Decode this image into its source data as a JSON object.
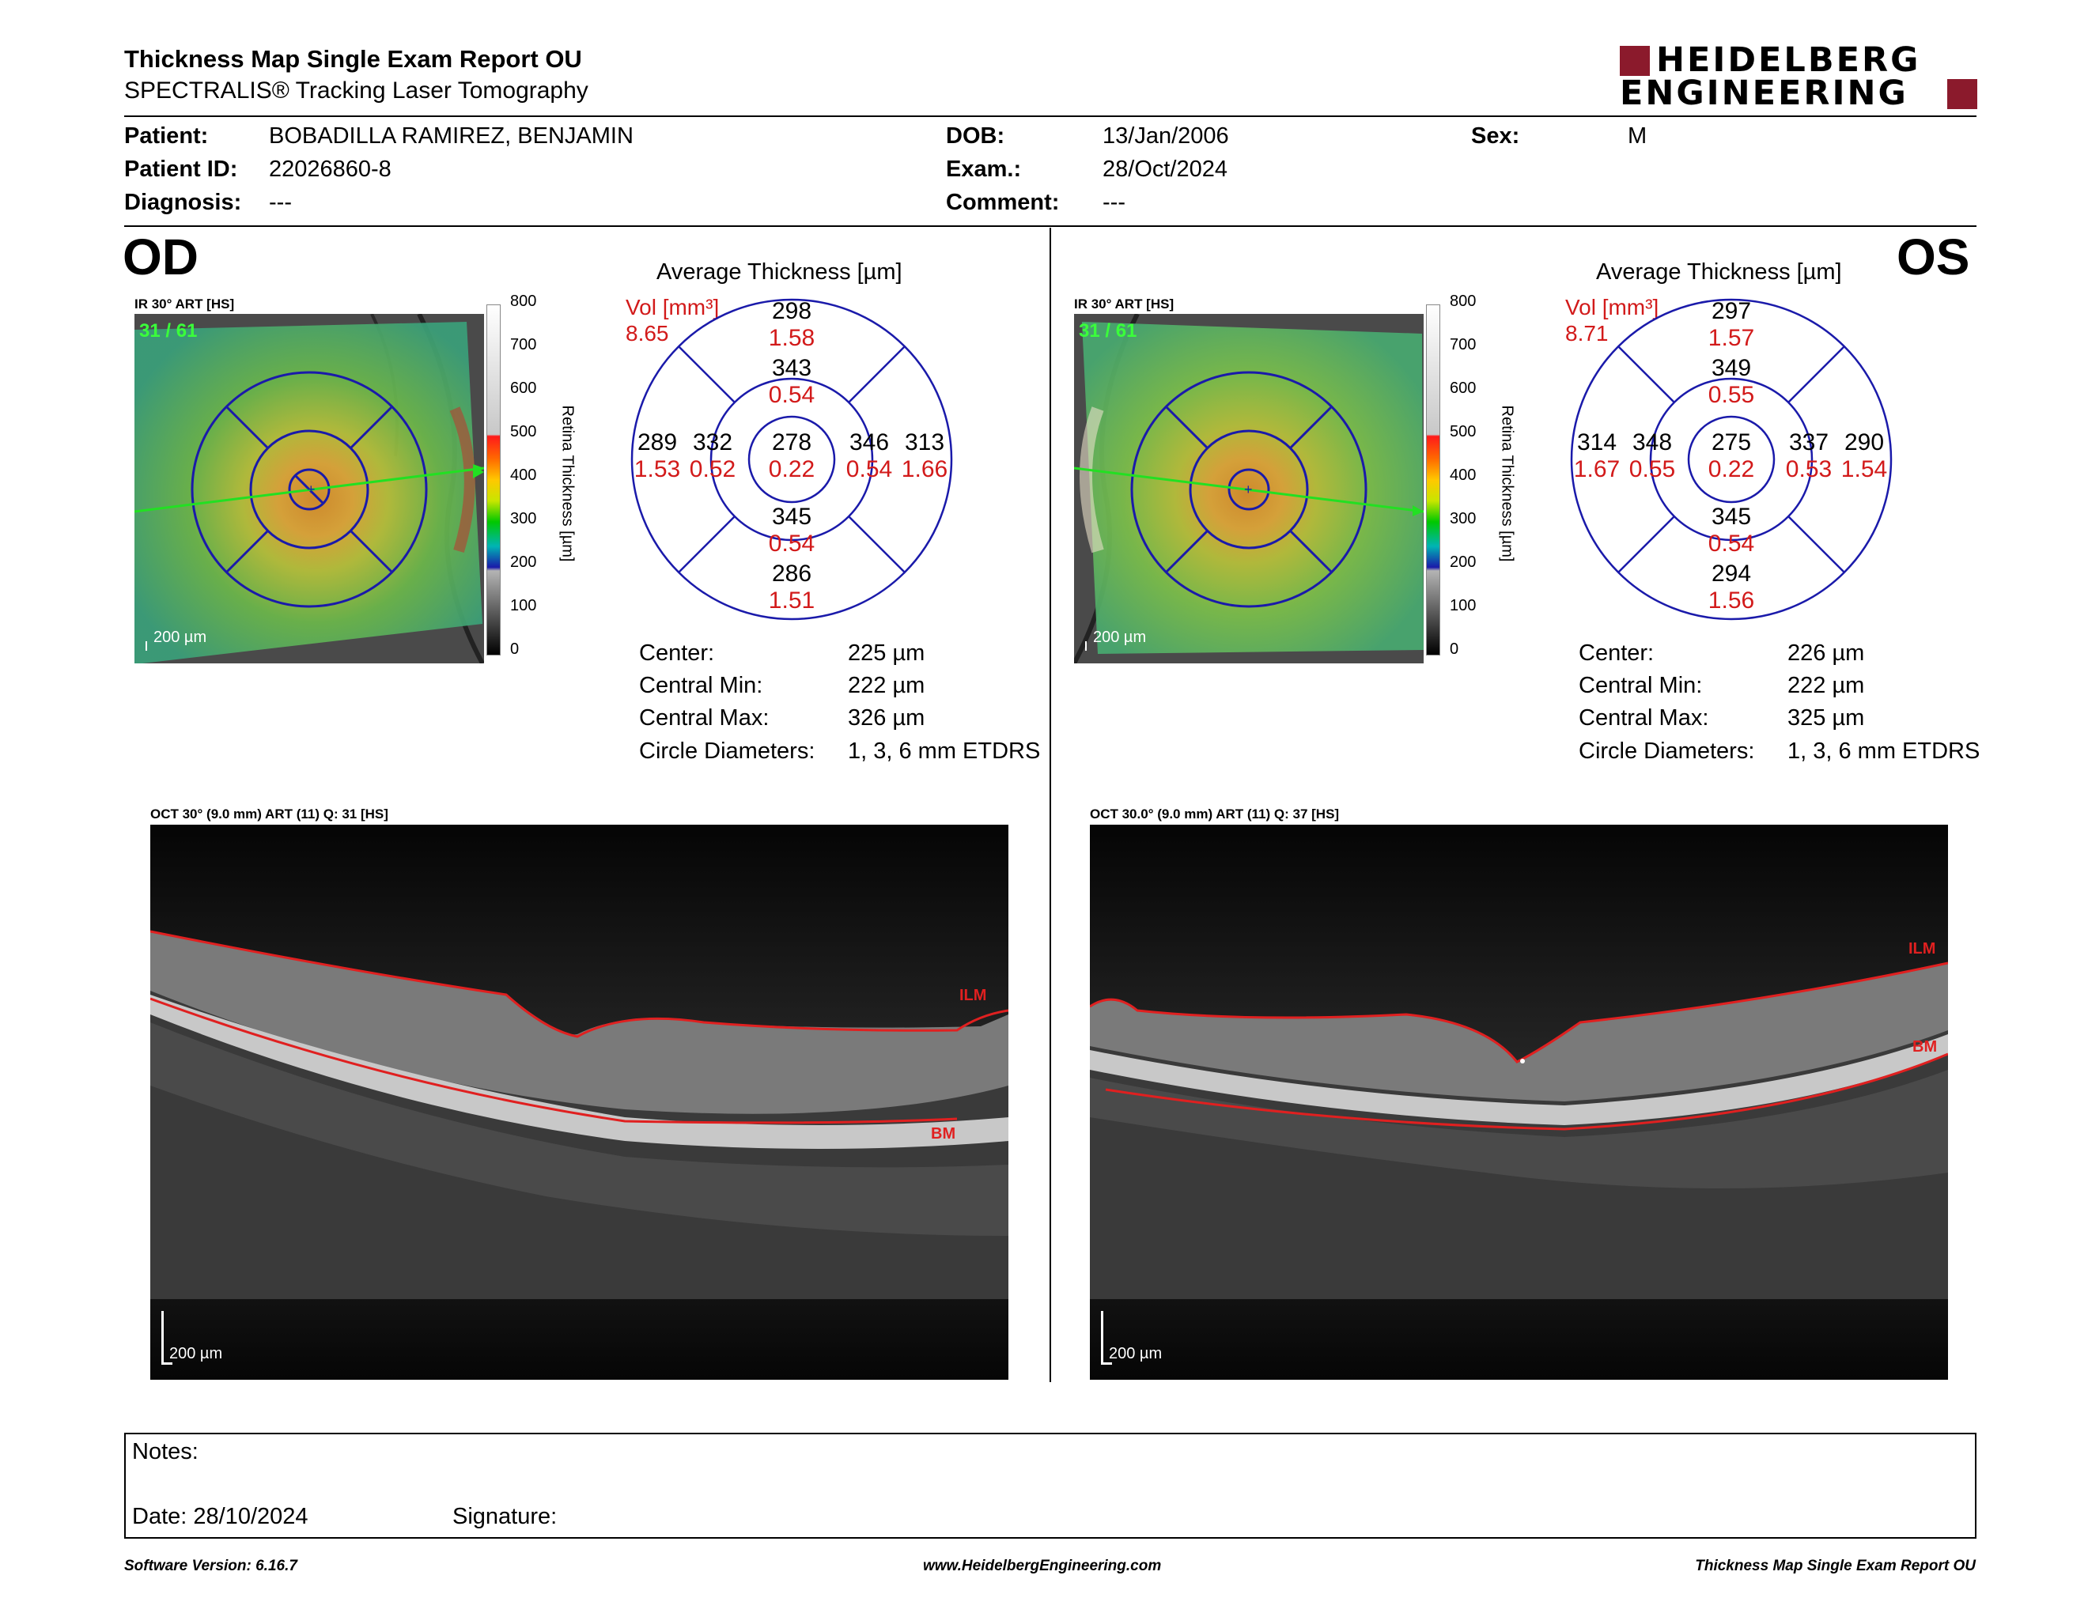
{
  "header": {
    "title": "Thickness Map Single Exam Report OU",
    "subtitle": "SPECTRALIS® Tracking Laser Tomography",
    "logo_line1": "HEIDELBERG",
    "logo_line2": "ENGINEERING",
    "brand_color": "#8b1a2c"
  },
  "patient": {
    "patient_label": "Patient:",
    "patient_value": "BOBADILLA RAMIREZ, BENJAMIN",
    "id_label": "Patient ID:",
    "id_value": "22026860-8",
    "diagnosis_label": "Diagnosis:",
    "diagnosis_value": "---",
    "dob_label": "DOB:",
    "dob_value": "13/Jan/2006",
    "exam_label": "Exam.:",
    "exam_value": "28/Oct/2024",
    "comment_label": "Comment:",
    "comment_value": "---",
    "sex_label": "Sex:",
    "sex_value": "M"
  },
  "od": {
    "eye": "OD",
    "ir_label": "IR 30° ART [HS]",
    "frame": "31 / 61",
    "scale": "200 µm",
    "avg_title": "Average Thickness [µm]",
    "vol_label": "Vol [mm³]",
    "vol_total": "8.65",
    "grid": {
      "top_outer": {
        "t": "298",
        "v": "1.58"
      },
      "top_inner": {
        "t": "343",
        "v": "0.54"
      },
      "left_outer": {
        "t": "289",
        "v": "1.53"
      },
      "left_inner": {
        "t": "332",
        "v": "0.52"
      },
      "center": {
        "t": "278",
        "v": "0.22"
      },
      "right_inner": {
        "t": "346",
        "v": "0.54"
      },
      "right_outer": {
        "t": "313",
        "v": "1.66"
      },
      "bottom_inner": {
        "t": "345",
        "v": "0.54"
      },
      "bottom_outer": {
        "t": "286",
        "v": "1.51"
      }
    },
    "stats": {
      "center_label": "Center:",
      "center_value": "225 µm",
      "min_label": "Central Min:",
      "min_value": "222 µm",
      "max_label": "Central Max:",
      "max_value": "326 µm",
      "diam_label": "Circle Diameters:",
      "diam_value": "1, 3, 6 mm ETDRS"
    },
    "oct_label": "OCT 30° (9.0 mm) ART (11) Q: 31 [HS]",
    "ilm": "ILM",
    "bm": "BM"
  },
  "os": {
    "eye": "OS",
    "ir_label": "IR 30° ART [HS]",
    "frame": "31 / 61",
    "scale": "200 µm",
    "avg_title": "Average Thickness [µm]",
    "vol_label": "Vol [mm³]",
    "vol_total": "8.71",
    "grid": {
      "top_outer": {
        "t": "297",
        "v": "1.57"
      },
      "top_inner": {
        "t": "349",
        "v": "0.55"
      },
      "left_outer": {
        "t": "314",
        "v": "1.67"
      },
      "left_inner": {
        "t": "348",
        "v": "0.55"
      },
      "center": {
        "t": "275",
        "v": "0.22"
      },
      "right_inner": {
        "t": "337",
        "v": "0.53"
      },
      "right_outer": {
        "t": "290",
        "v": "1.54"
      },
      "bottom_inner": {
        "t": "345",
        "v": "0.54"
      },
      "bottom_outer": {
        "t": "294",
        "v": "1.56"
      }
    },
    "stats": {
      "center_label": "Center:",
      "center_value": "226 µm",
      "min_label": "Central Min:",
      "min_value": "222 µm",
      "max_label": "Central Max:",
      "max_value": "325 µm",
      "diam_label": "Circle Diameters:",
      "diam_value": "1, 3, 6 mm ETDRS"
    },
    "oct_label": "OCT 30.0° (9.0 mm) ART (11) Q: 37 [HS]",
    "ilm": "ILM",
    "bm": "BM"
  },
  "colorbar": {
    "ticks": [
      "800",
      "700",
      "600",
      "500",
      "400",
      "300",
      "200",
      "100",
      "0"
    ],
    "title": "Retina  Thickness [µm]"
  },
  "notes": {
    "notes_label": "Notes:",
    "date_label": "Date: 28/10/2024",
    "signature_label": "Signature:"
  },
  "footer": {
    "version": "Software Version: 6.16.7",
    "website": "www.HeidelbergEngineering.com",
    "report": "Thickness Map Single Exam Report OU"
  }
}
